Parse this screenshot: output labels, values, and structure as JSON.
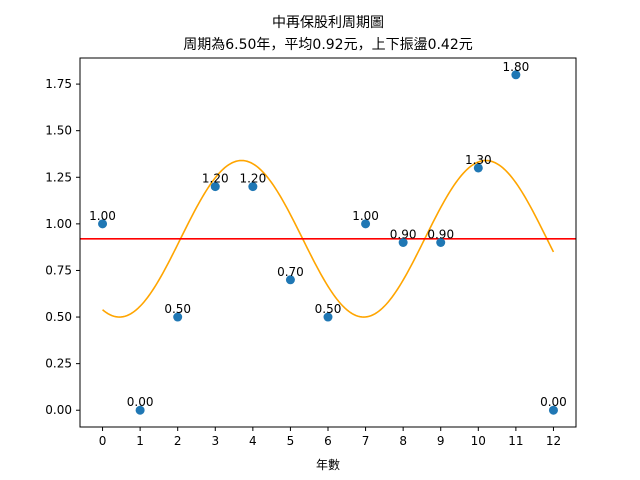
{
  "chart_data": {
    "type": "scatter",
    "title_line1": "中再保股利周期圖",
    "title_line2": "周期為6.50年，平均0.92元，上下振盪0.42元",
    "xlabel": "年數",
    "ylabel": "",
    "xlim": [
      -0.6,
      12.6
    ],
    "ylim": [
      -0.09,
      1.89
    ],
    "xticks": [
      0,
      1,
      2,
      3,
      4,
      5,
      6,
      7,
      8,
      9,
      10,
      11,
      12
    ],
    "yticks": [
      0.0,
      0.25,
      0.5,
      0.75,
      1.0,
      1.25,
      1.5,
      1.75
    ],
    "grid": false,
    "points": {
      "x": [
        0,
        1,
        2,
        3,
        4,
        5,
        6,
        7,
        8,
        9,
        10,
        11,
        12
      ],
      "y": [
        1.0,
        0.0,
        0.5,
        1.2,
        1.2,
        0.7,
        0.5,
        1.0,
        0.9,
        0.9,
        1.3,
        1.8,
        0.0
      ],
      "labels": [
        "1.00",
        "0.00",
        "0.50",
        "1.20",
        "1.20",
        "0.70",
        "0.50",
        "1.00",
        "0.90",
        "0.90",
        "1.30",
        "1.80",
        "0.00"
      ],
      "color": "#1f77b4"
    },
    "mean_line": {
      "y": 0.92,
      "color": "#ff0000"
    },
    "fit_curve": {
      "color": "#ffa500",
      "mean": 0.92,
      "amplitude": 0.42,
      "period": 6.5,
      "peak_x": 3.7,
      "x_range": [
        0,
        12
      ]
    }
  }
}
